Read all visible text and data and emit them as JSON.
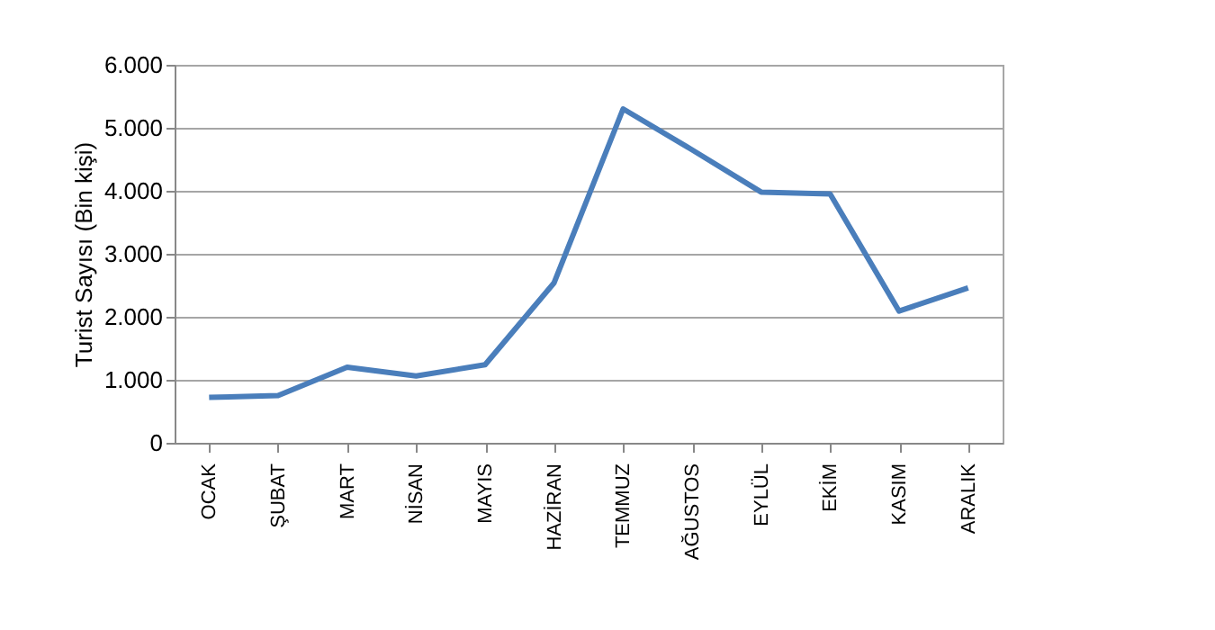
{
  "chart_data": {
    "type": "line",
    "ylabel": "Turist  Sayısı (Bin  kişi)",
    "categories": [
      "OCAK",
      "ŞUBAT",
      "MART",
      "NİSAN",
      "MAYIS",
      "HAZİRAN",
      "TEMMUZ",
      "AĞUSTOS",
      "EYLÜL",
      "EKİM",
      "KASIM",
      "ARALIK"
    ],
    "series": [
      {
        "color": "#4a7ebb",
        "values": [
          720,
          750,
          1200,
          1060,
          1240,
          2540,
          5300,
          4650,
          3980,
          3950,
          2090,
          2460
        ]
      }
    ],
    "ylim": [
      0,
      6000
    ],
    "yticks": [
      0,
      {
        "value": 1000,
        "label": "1.000"
      },
      {
        "value": 2000,
        "label": "2.000"
      },
      {
        "value": 3000,
        "label": "3.000"
      },
      {
        "value": 4000,
        "label": "4.000"
      },
      {
        "value": 5000,
        "label": "5.000"
      },
      {
        "value": 6000,
        "label": "6.000"
      }
    ],
    "grid": "y",
    "marker": "none",
    "line_style": "solid"
  }
}
